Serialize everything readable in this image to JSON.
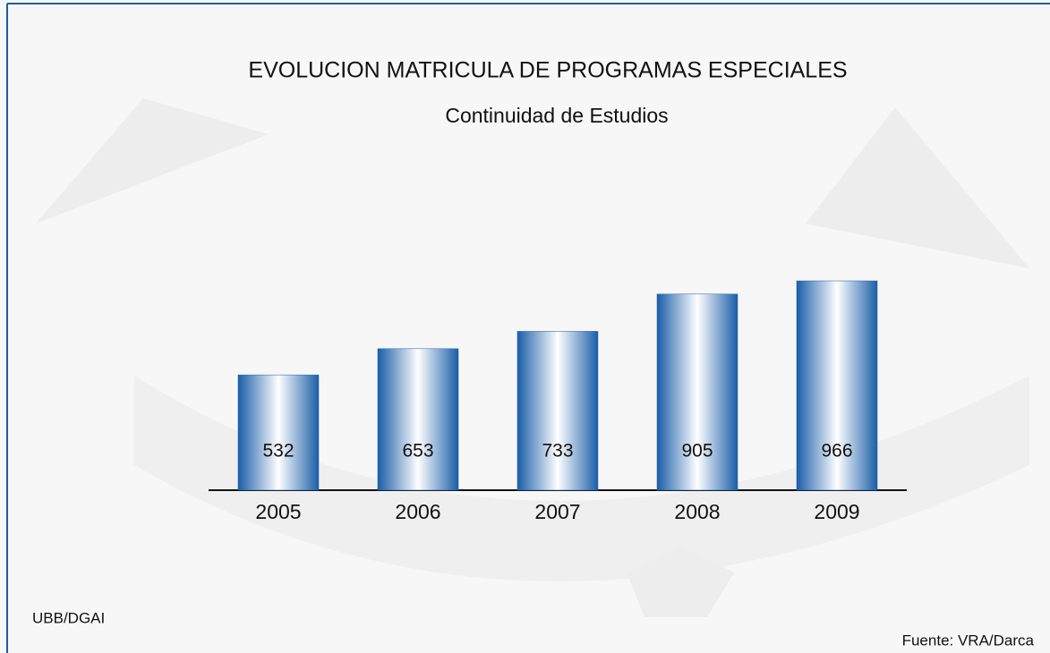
{
  "chart_data": {
    "type": "bar",
    "title": "EVOLUCION MATRICULA DE PROGRAMAS ESPECIALES",
    "subtitle": "Continuidad de Estudios",
    "categories": [
      "2005",
      "2006",
      "2007",
      "2008",
      "2009"
    ],
    "values": [
      532,
      653,
      733,
      905,
      966
    ],
    "color": "#1a5ea8",
    "annotations": [
      "UBB/DGAI",
      "Fuente: VRA/Darca"
    ]
  }
}
